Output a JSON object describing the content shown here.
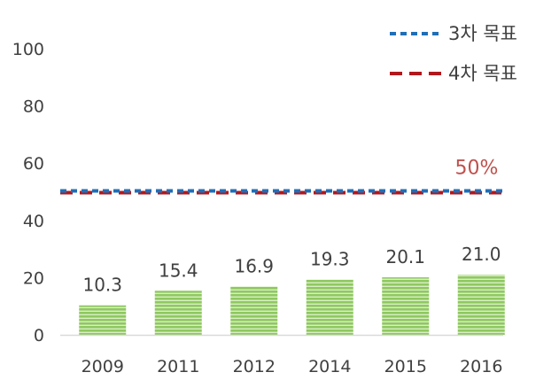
{
  "chart_data": {
    "type": "bar",
    "categories": [
      "2009",
      "2011",
      "2012",
      "2014",
      "2015",
      "2016"
    ],
    "values": [
      10.3,
      15.4,
      16.9,
      19.3,
      20.1,
      21.0
    ],
    "value_labels": [
      "10.3",
      "15.4",
      "16.9",
      "19.3",
      "20.1",
      "21.0"
    ],
    "title": "",
    "xlabel": "",
    "ylabel": "",
    "ylim": [
      0,
      100
    ],
    "yticks": [
      0,
      20,
      40,
      60,
      80,
      100
    ],
    "bar_color": "#8fc860",
    "bar_stripe_color": "#d9efc4",
    "grid": false,
    "legend_position": "top-right",
    "targets": [
      {
        "name": "3차 목표",
        "value": 50,
        "color": "#1f6fb8",
        "style": "dashed"
      },
      {
        "name": "4차 목표",
        "value": 50,
        "color": "#b2171c",
        "style": "dashed"
      }
    ],
    "annotation": {
      "text": "50%",
      "value": 50,
      "color": "#c0504d"
    }
  }
}
